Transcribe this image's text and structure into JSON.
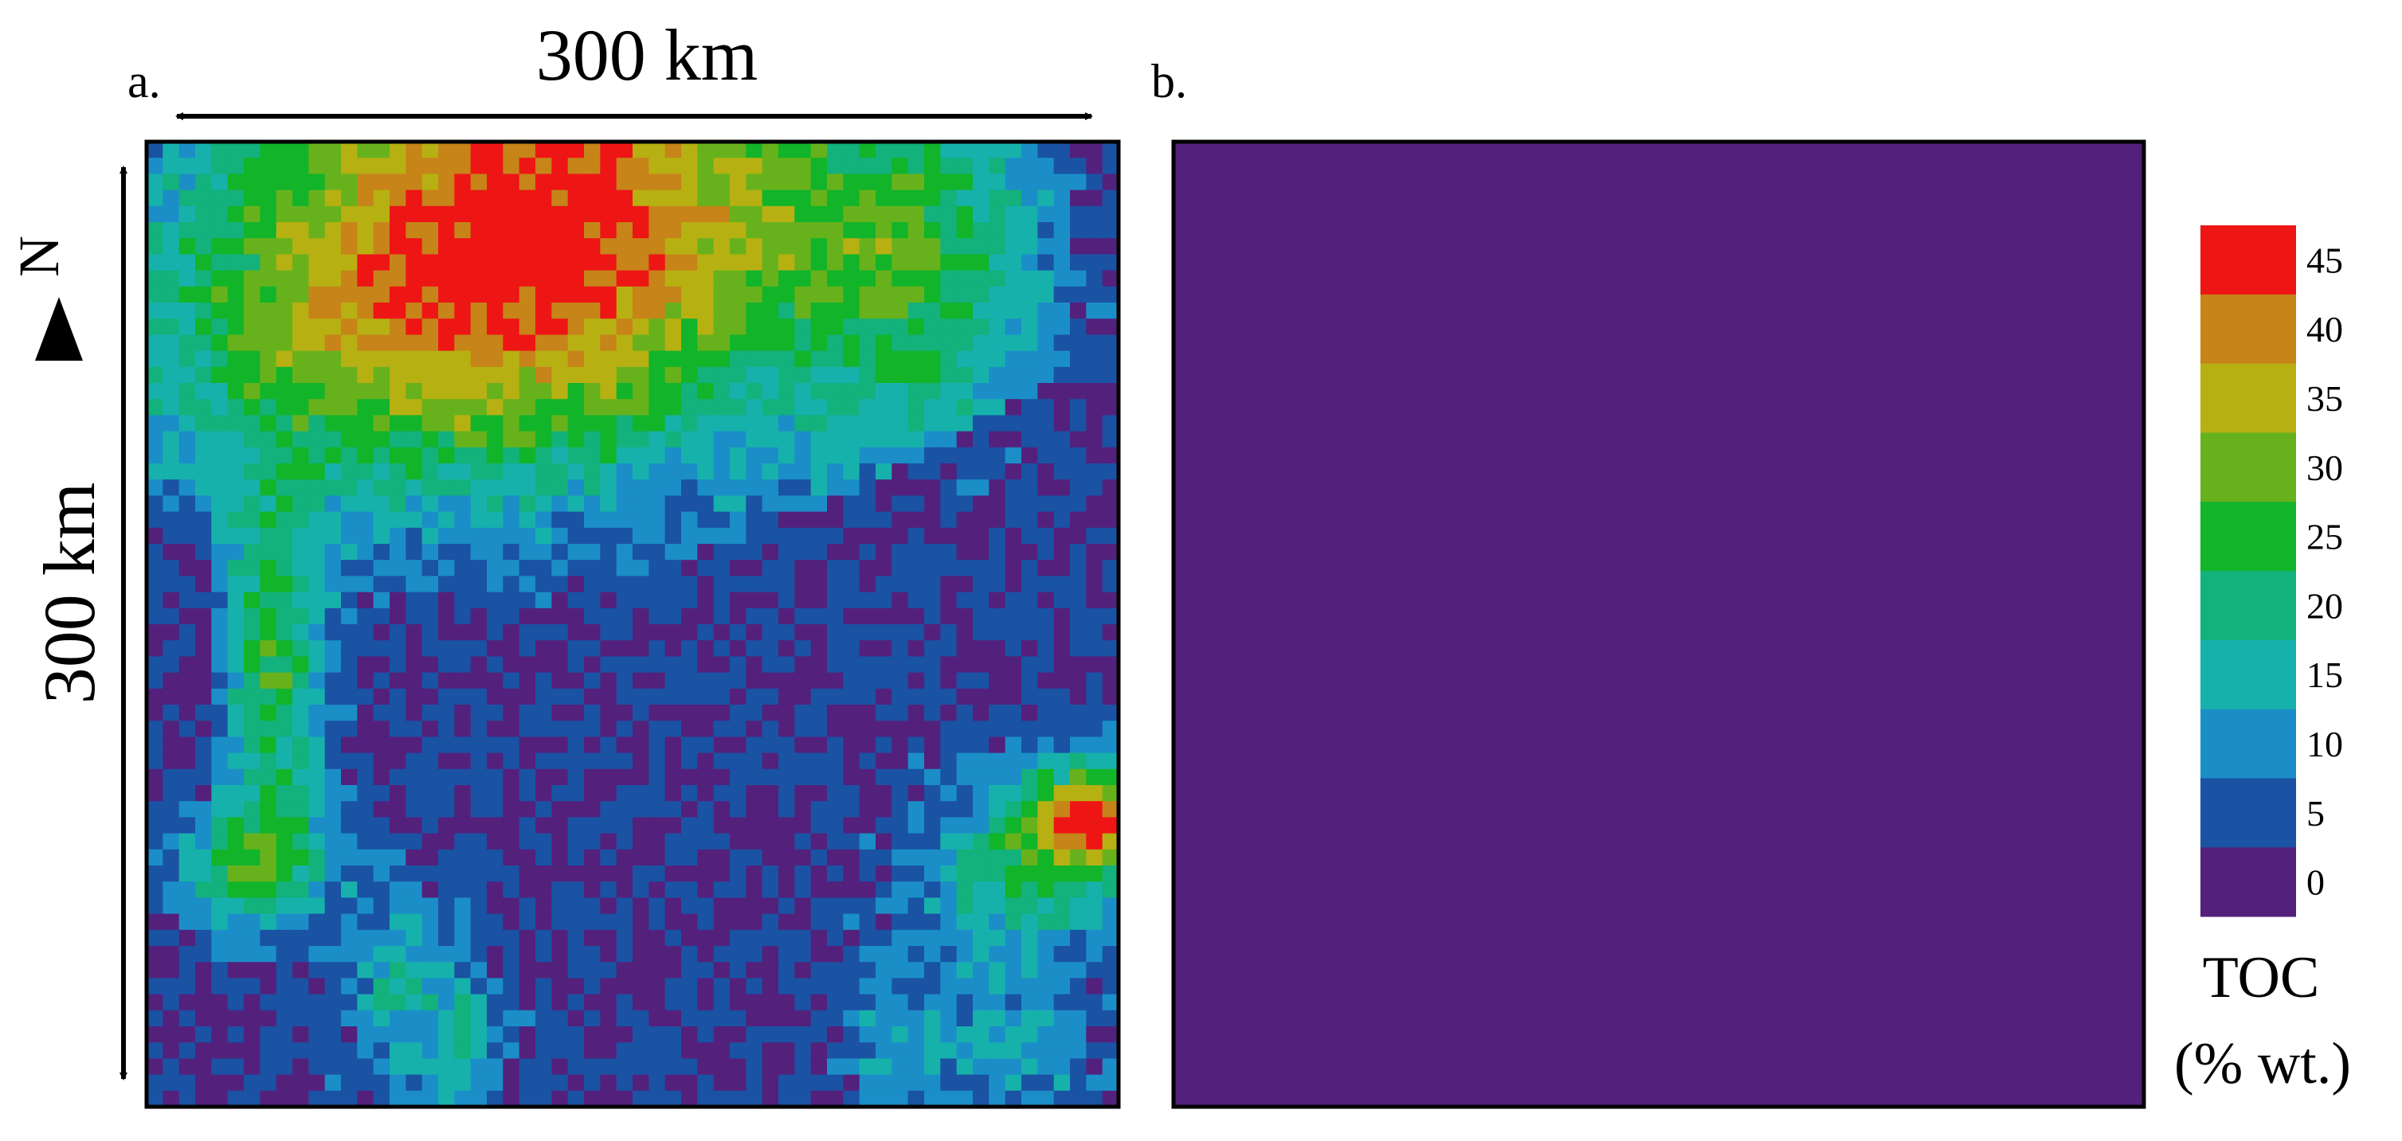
{
  "chart_data": {
    "type": "heatmap",
    "panels": [
      {
        "label": "a.",
        "description_field": "TOC map with organic-rich belt along the north and patches in the south"
      },
      {
        "label": "b.",
        "description_field": "TOC map uniformly near zero"
      }
    ],
    "scale": {
      "horizontal": "300 km",
      "vertical": "300 km",
      "north_label": "N"
    },
    "colorbar": {
      "title_line1": "TOC",
      "title_line2": "(% wt.)",
      "ticks": [
        "45",
        "40",
        "35",
        "30",
        "25",
        "20",
        "15",
        "10",
        "5",
        "0"
      ],
      "bins": [
        {
          "min": 40,
          "max": 45,
          "color": "#ee1515"
        },
        {
          "min": 35,
          "max": 40,
          "color": "#c68419"
        },
        {
          "min": 30,
          "max": 35,
          "color": "#b7b012"
        },
        {
          "min": 25,
          "max": 30,
          "color": "#67b21c"
        },
        {
          "min": 20,
          "max": 25,
          "color": "#12b42a"
        },
        {
          "min": 15,
          "max": 20,
          "color": "#13b17c"
        },
        {
          "min": 10,
          "max": 15,
          "color": "#17b1ac"
        },
        {
          "min": 5,
          "max": 10,
          "color": "#1b8ec7"
        },
        {
          "min": 0,
          "max": 5,
          "color": "#1a52a4"
        },
        {
          "min": -5,
          "max": 0,
          "color": "#53217c"
        }
      ],
      "range": [
        0,
        45
      ]
    },
    "grid_size": 60,
    "background_color": "#53207c"
  }
}
